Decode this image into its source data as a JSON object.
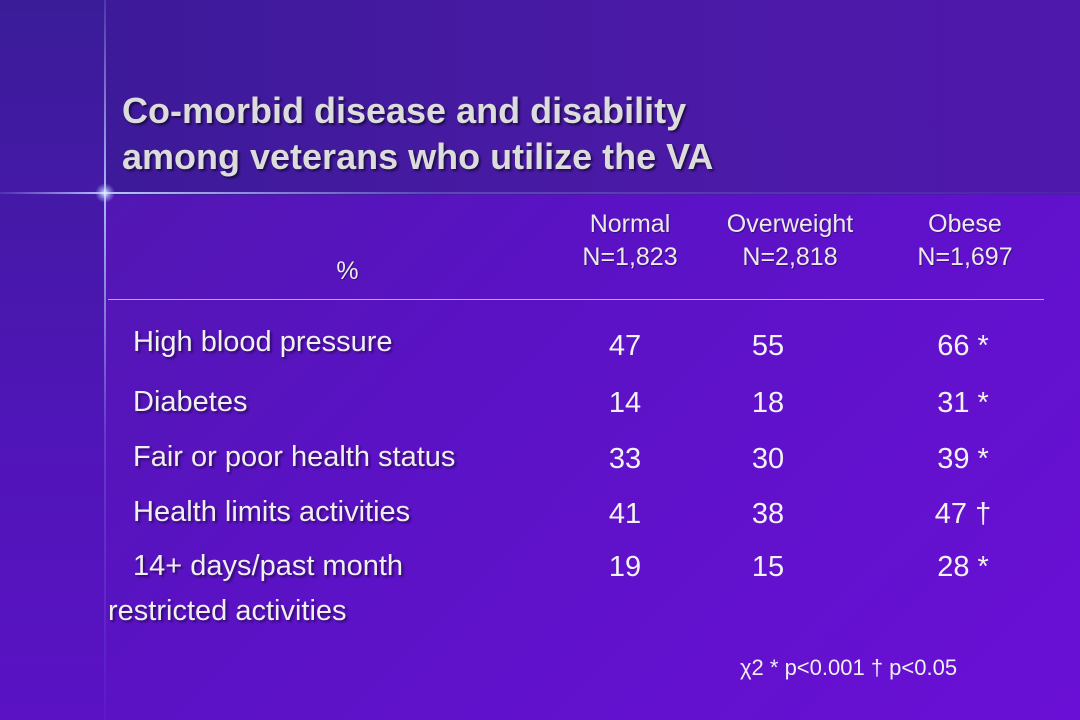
{
  "title": {
    "line1": "Co-morbid disease and disability",
    "line2": "among veterans who utilize the VA"
  },
  "table": {
    "row_header": "%",
    "columns": [
      {
        "name": "Normal",
        "n": "N=1,823"
      },
      {
        "name": "Overweight",
        "n": "N=2,818"
      },
      {
        "name": "Obese",
        "n": "N=1,697"
      }
    ],
    "rows": [
      {
        "label": "High blood pressure",
        "values": [
          "47",
          "55",
          "66 *"
        ]
      },
      {
        "label": "Diabetes",
        "values": [
          "14",
          "18",
          "31 *"
        ]
      },
      {
        "label": "Fair or poor health status",
        "values": [
          "33",
          "30",
          "39 *"
        ]
      },
      {
        "label": "Health limits activities",
        "values": [
          "41",
          "38",
          "47 †"
        ]
      },
      {
        "label_line1": "14+ days/past month",
        "label_line2": "restricted activities",
        "values": [
          "19",
          "15",
          "28 *"
        ]
      }
    ]
  },
  "footnote": "χ2 * p<0.001 † p<0.05",
  "colors": {
    "background": "#5a12c4",
    "top_band": "#3a1a96",
    "title_text": "#dcdcdc",
    "body_text": "#f2f2f2"
  }
}
